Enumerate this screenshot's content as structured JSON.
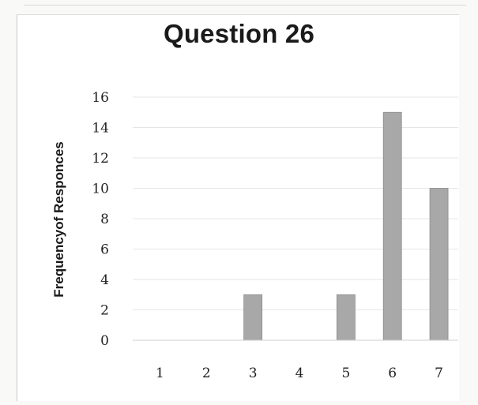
{
  "chart_data": {
    "type": "bar",
    "title": "Question 26",
    "xlabel": "",
    "ylabel": "Frequencyof Responces",
    "categories": [
      "1",
      "2",
      "3",
      "4",
      "5",
      "6",
      "7"
    ],
    "values": [
      0,
      0,
      3,
      0,
      3,
      15,
      10
    ],
    "ylim": [
      0,
      16
    ],
    "yticks": [
      0,
      2,
      4,
      6,
      8,
      10,
      12,
      14,
      16
    ],
    "grid": true,
    "legend": "none",
    "colors": {
      "bar": "#a8a8a8",
      "bar_edge": "#8c8c8c",
      "grid": "#e6e6e6",
      "axis": "#cfcfcf"
    }
  }
}
